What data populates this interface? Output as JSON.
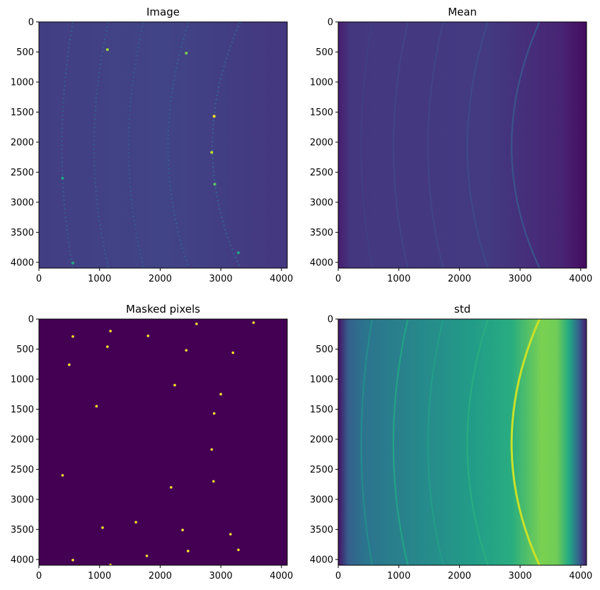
{
  "chart_data": [
    {
      "type": "heatmap",
      "title": "Image",
      "colormap": "viridis",
      "xlim": [
        0,
        4096
      ],
      "ylim": [
        4096,
        0
      ],
      "xticks": [
        0,
        1000,
        2000,
        3000,
        4000
      ],
      "yticks": [
        0,
        500,
        1000,
        1500,
        2000,
        2500,
        3000,
        3500,
        4000
      ],
      "background_level": 0.18,
      "rings": [
        {
          "x_left": 380,
          "x_right": 560,
          "level": 0.3
        },
        {
          "x_left": 910,
          "x_right": 1150,
          "level": 0.3
        },
        {
          "x_left": 1480,
          "x_right": 1730,
          "level": 0.28
        },
        {
          "x_left": 2130,
          "x_right": 2470,
          "level": 0.3
        },
        {
          "x_left": 2860,
          "x_right": 3320,
          "level": 0.32
        }
      ],
      "bright_spots": [
        {
          "x": 1130,
          "y": 460,
          "level": 0.85
        },
        {
          "x": 2430,
          "y": 520,
          "level": 0.8
        },
        {
          "x": 2890,
          "y": 1570,
          "level": 1.0
        },
        {
          "x": 2850,
          "y": 2170,
          "level": 0.9
        },
        {
          "x": 2900,
          "y": 2700,
          "level": 0.75
        },
        {
          "x": 390,
          "y": 2600,
          "level": 0.6
        },
        {
          "x": 560,
          "y": 4010,
          "level": 0.6
        },
        {
          "x": 3290,
          "y": 3840,
          "level": 0.6
        }
      ]
    },
    {
      "type": "heatmap",
      "title": "Mean",
      "colormap": "viridis",
      "xlim": [
        0,
        4096
      ],
      "ylim": [
        4096,
        0
      ],
      "xticks": [
        0,
        1000,
        2000,
        3000,
        4000
      ],
      "yticks": [
        0,
        500,
        1000,
        1500,
        2000,
        2500,
        3000,
        3500,
        4000
      ],
      "background_level": 0.1,
      "rings": [
        {
          "x_left": 380,
          "x_right": 560,
          "level": 0.18
        },
        {
          "x_left": 910,
          "x_right": 1150,
          "level": 0.2
        },
        {
          "x_left": 1480,
          "x_right": 1730,
          "level": 0.2
        },
        {
          "x_left": 2130,
          "x_right": 2470,
          "level": 0.22
        },
        {
          "x_left": 2860,
          "x_right": 3320,
          "level": 0.26
        }
      ]
    },
    {
      "type": "heatmap",
      "title": "Masked pixels",
      "colormap": "viridis",
      "xlim": [
        0,
        4096
      ],
      "ylim": [
        4096,
        0
      ],
      "xticks": [
        0,
        1000,
        2000,
        3000,
        4000
      ],
      "yticks": [
        0,
        500,
        1000,
        1500,
        2000,
        2500,
        3000,
        3500,
        4000
      ],
      "background_level": 0.0,
      "masked_points": [
        {
          "x": 560,
          "y": 290
        },
        {
          "x": 1180,
          "y": 200
        },
        {
          "x": 1800,
          "y": 280
        },
        {
          "x": 2600,
          "y": 80
        },
        {
          "x": 3540,
          "y": 60
        },
        {
          "x": 1130,
          "y": 460
        },
        {
          "x": 2430,
          "y": 520
        },
        {
          "x": 3200,
          "y": 560
        },
        {
          "x": 500,
          "y": 760
        },
        {
          "x": 2240,
          "y": 1100
        },
        {
          "x": 3000,
          "y": 1250
        },
        {
          "x": 950,
          "y": 1450
        },
        {
          "x": 2890,
          "y": 1570
        },
        {
          "x": 2850,
          "y": 2170
        },
        {
          "x": 2880,
          "y": 2700
        },
        {
          "x": 390,
          "y": 2600
        },
        {
          "x": 2180,
          "y": 2800
        },
        {
          "x": 1050,
          "y": 3470
        },
        {
          "x": 1600,
          "y": 3380
        },
        {
          "x": 2370,
          "y": 3510
        },
        {
          "x": 3160,
          "y": 3580
        },
        {
          "x": 3290,
          "y": 3840
        },
        {
          "x": 560,
          "y": 4010
        },
        {
          "x": 1780,
          "y": 3940
        },
        {
          "x": 2460,
          "y": 3860
        },
        {
          "x": 1180,
          "y": 4090
        }
      ]
    },
    {
      "type": "heatmap",
      "title": "std",
      "colormap": "viridis",
      "xlim": [
        0,
        4096
      ],
      "ylim": [
        4096,
        0
      ],
      "xticks": [
        0,
        1000,
        2000,
        3000,
        4000
      ],
      "yticks": [
        0,
        500,
        1000,
        1500,
        2000,
        2500,
        3000,
        3500,
        4000
      ],
      "background_level": 0.4,
      "rings": [
        {
          "x_left": 380,
          "x_right": 560,
          "level": 0.48
        },
        {
          "x_left": 910,
          "x_right": 1150,
          "level": 0.58
        },
        {
          "x_left": 1480,
          "x_right": 1730,
          "level": 0.55
        },
        {
          "x_left": 2130,
          "x_right": 2470,
          "level": 0.62
        },
        {
          "x_left": 2860,
          "x_right": 3320,
          "level": 0.92
        }
      ]
    }
  ]
}
